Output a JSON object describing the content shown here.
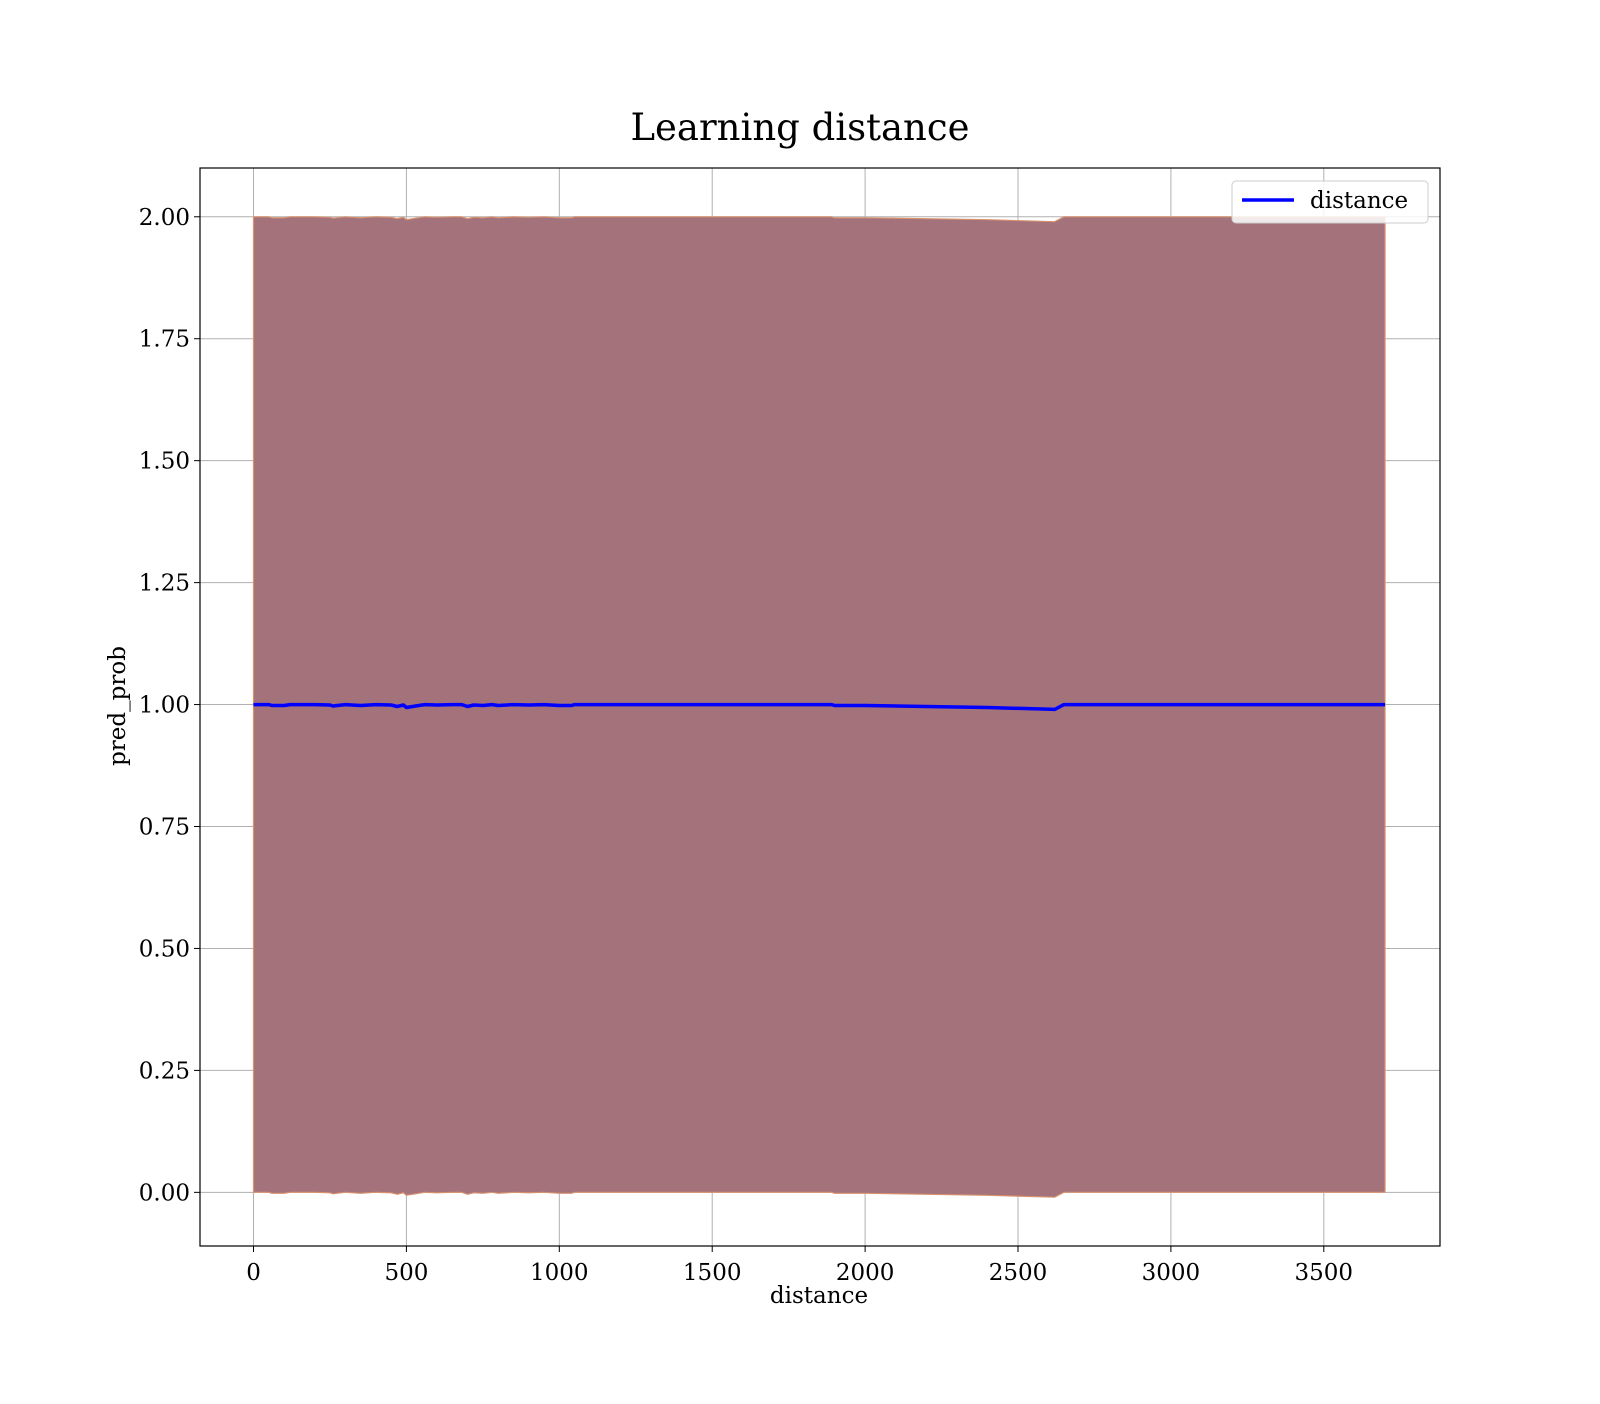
{
  "chart_data": {
    "type": "line",
    "title": "Learning distance",
    "xlabel": "distance",
    "ylabel": "pred_prob",
    "xlim": [
      -175,
      3880
    ],
    "ylim": [
      -0.11,
      2.1
    ],
    "xticks": [
      0,
      500,
      1000,
      1500,
      2000,
      2500,
      3000,
      3500
    ],
    "xtick_labels": [
      "0",
      "500",
      "1000",
      "1500",
      "2000",
      "2500",
      "3000",
      "3500"
    ],
    "yticks": [
      0.0,
      0.25,
      0.5,
      0.75,
      1.0,
      1.25,
      1.5,
      1.75,
      2.0
    ],
    "ytick_labels": [
      "0.00",
      "0.25",
      "0.50",
      "0.75",
      "1.00",
      "1.25",
      "1.50",
      "1.75",
      "2.00"
    ],
    "grid": true,
    "legend_position": "top-right",
    "series": [
      {
        "name": "distance",
        "color": "#0000ff",
        "x": [
          0,
          50,
          60,
          100,
          120,
          150,
          200,
          250,
          260,
          300,
          350,
          400,
          450,
          470,
          490,
          500,
          530,
          560,
          600,
          650,
          680,
          700,
          720,
          750,
          780,
          800,
          850,
          900,
          950,
          1000,
          1040,
          1050,
          1100,
          1500,
          1890,
          1900,
          2000,
          2200,
          2400,
          2620,
          2650,
          3000,
          3500,
          3700
        ],
        "values": [
          1.0,
          1.0,
          0.998,
          0.998,
          1.0,
          1.0,
          1.0,
          0.999,
          0.997,
          1.0,
          0.998,
          1.0,
          0.999,
          0.996,
          0.999,
          0.994,
          0.997,
          1.0,
          0.999,
          1.0,
          1.0,
          0.996,
          0.999,
          0.998,
          1.0,
          0.998,
          1.0,
          0.999,
          1.0,
          0.998,
          0.998,
          1.0,
          1.0,
          1.0,
          1.0,
          0.998,
          0.998,
          0.996,
          0.994,
          0.99,
          1.0,
          1.0,
          1.0,
          1.0
        ]
      }
    ],
    "band": {
      "color": "#a3727b",
      "edge_color": "#d8916d",
      "upper": [
        2.0,
        2.0,
        1.998,
        1.998,
        2.0,
        2.0,
        2.0,
        1.999,
        1.997,
        2.0,
        1.998,
        2.0,
        1.999,
        1.996,
        1.999,
        1.994,
        1.997,
        2.0,
        1.999,
        2.0,
        2.0,
        1.996,
        1.999,
        1.998,
        2.0,
        1.998,
        2.0,
        1.999,
        2.0,
        1.998,
        1.998,
        2.0,
        2.0,
        2.0,
        2.0,
        1.998,
        1.998,
        1.996,
        1.994,
        1.99,
        2.0,
        2.0,
        2.0,
        2.0
      ],
      "lower": [
        0.0,
        0.0,
        -0.002,
        -0.002,
        0.0,
        0.0,
        0.0,
        -0.001,
        -0.003,
        0.0,
        -0.002,
        0.0,
        -0.001,
        -0.004,
        -0.001,
        -0.006,
        -0.003,
        0.0,
        -0.001,
        0.0,
        0.0,
        -0.004,
        -0.001,
        -0.002,
        0.0,
        -0.002,
        0.0,
        -0.001,
        0.0,
        -0.002,
        -0.002,
        0.0,
        0.0,
        0.0,
        0.0,
        -0.002,
        -0.002,
        -0.004,
        -0.006,
        -0.01,
        0.0,
        0.0,
        0.0,
        0.0
      ]
    }
  }
}
